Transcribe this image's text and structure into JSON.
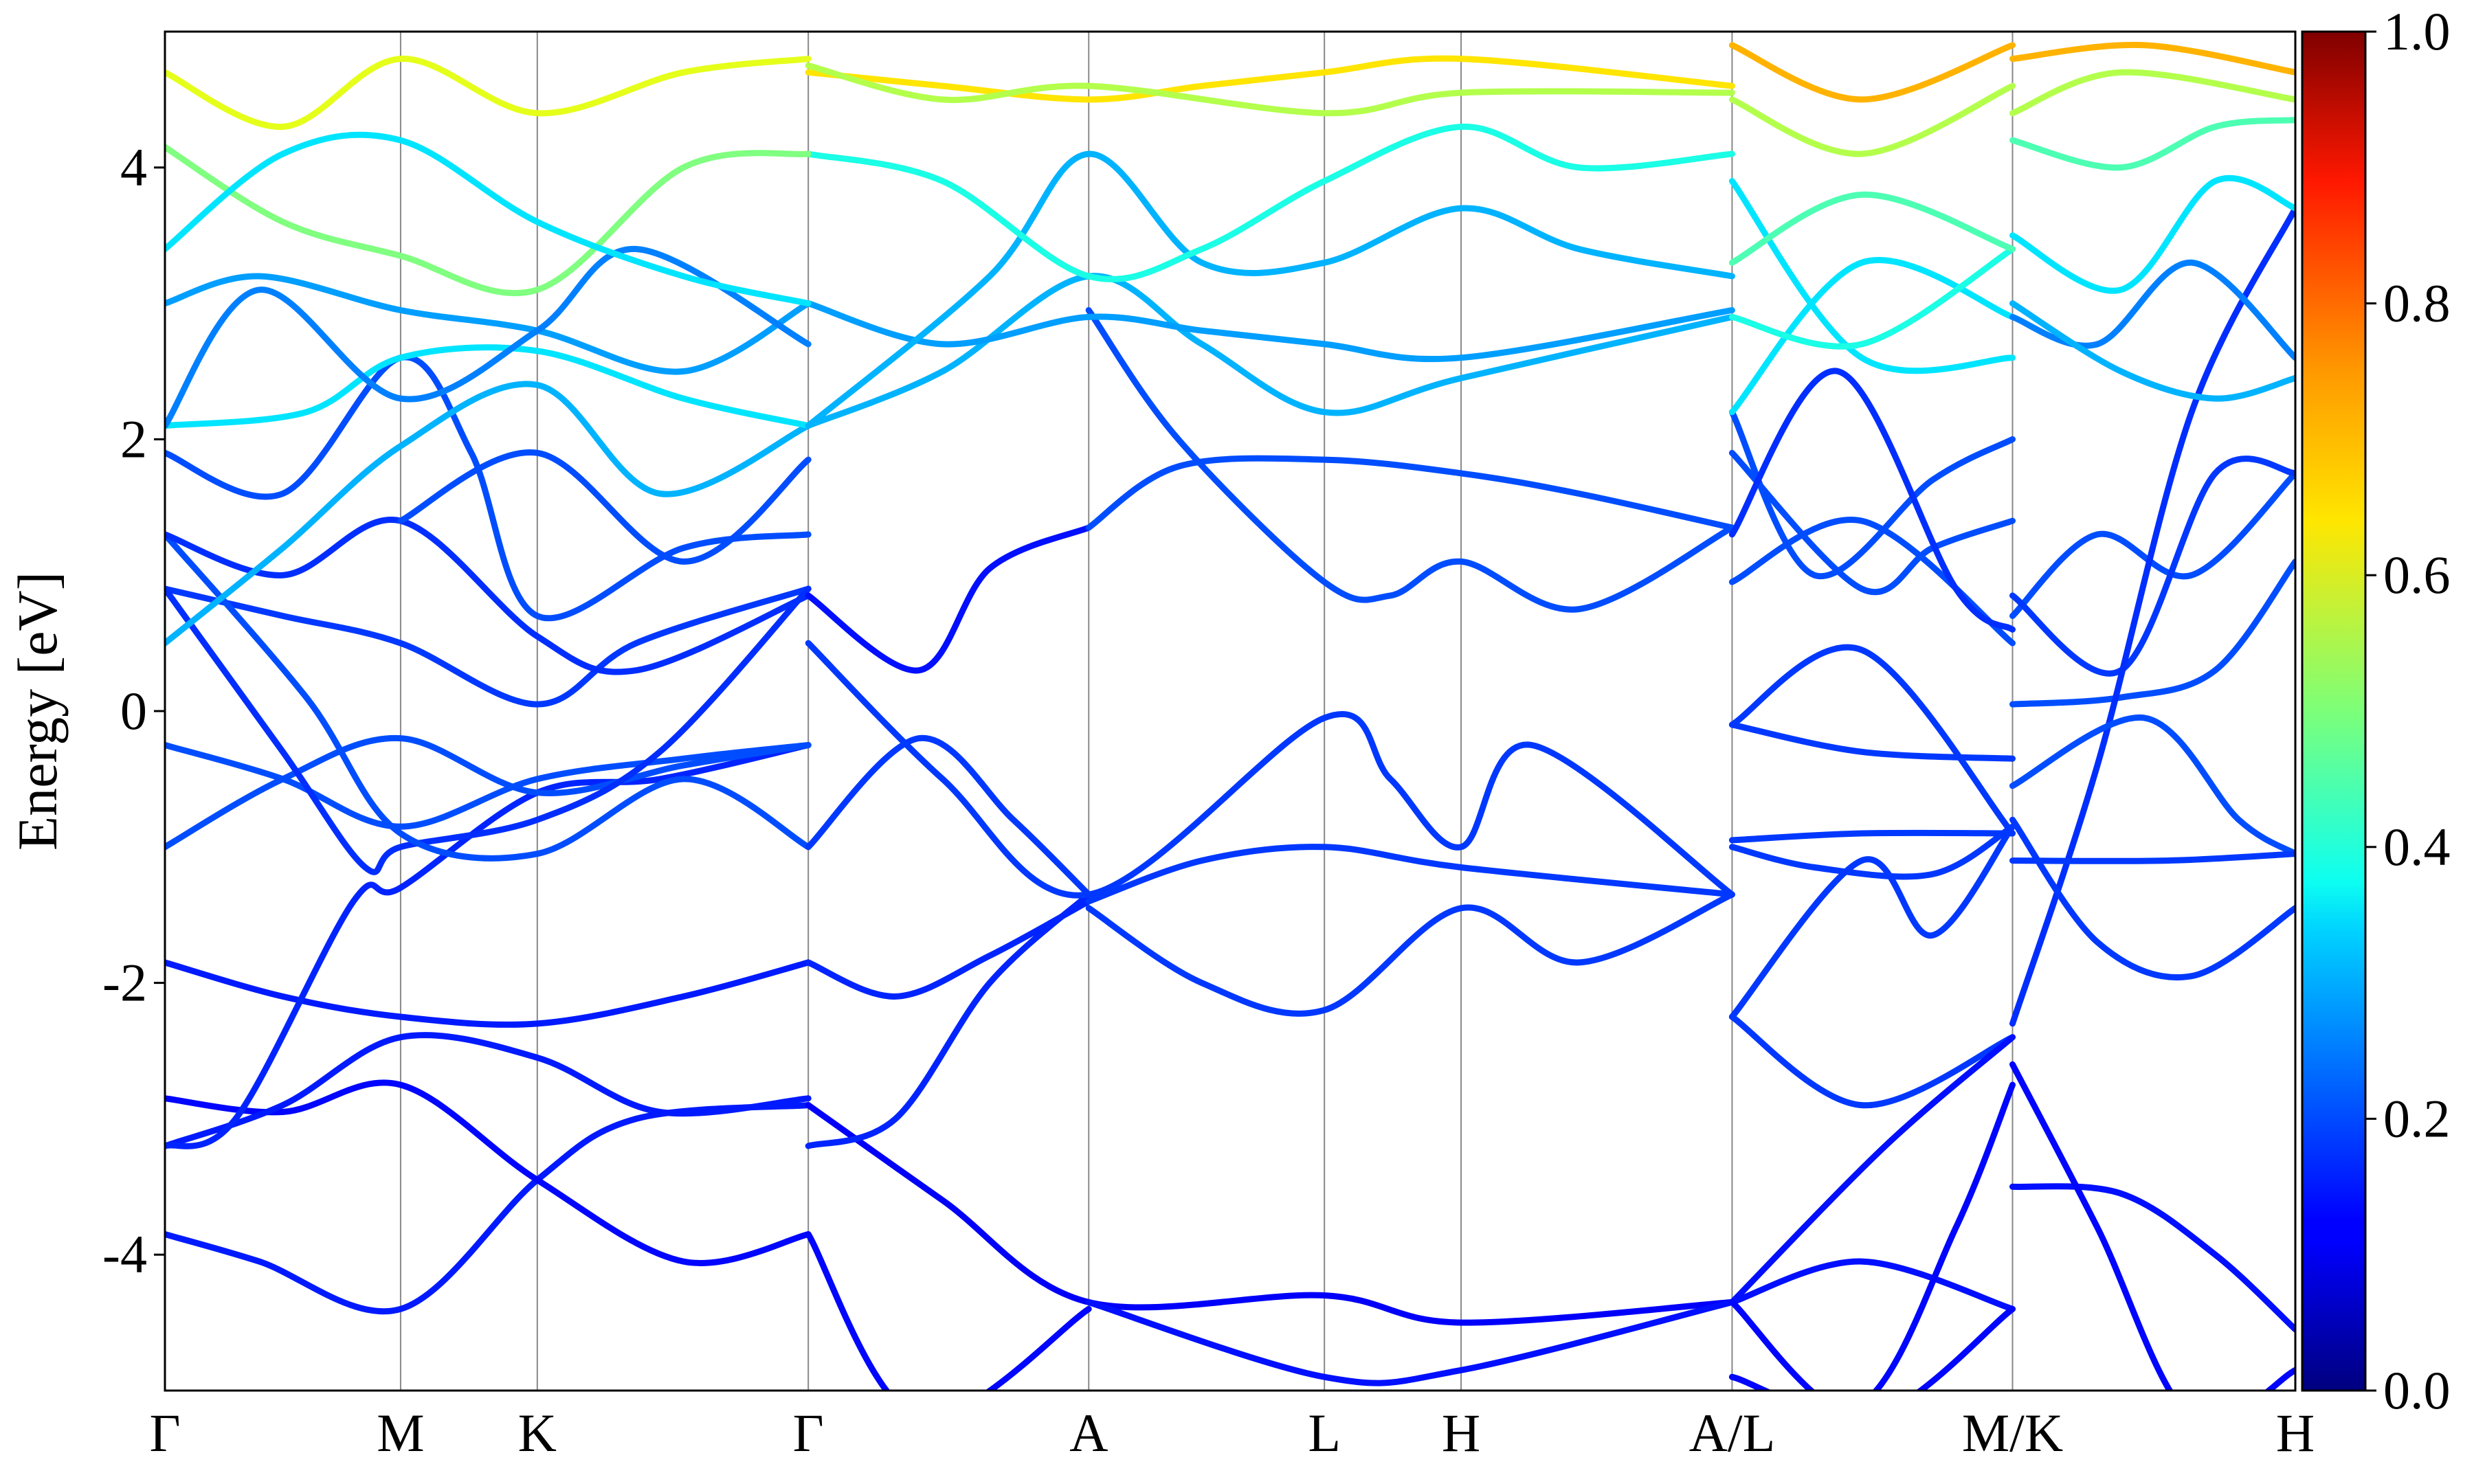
{
  "chart_data": {
    "type": "line",
    "title": "",
    "xlabel": "",
    "ylabel": "Energy [eV]",
    "ylim": [
      -5,
      5
    ],
    "y_ticks": [
      "-4",
      "-2",
      "0",
      "2",
      "4"
    ],
    "k_points": [
      {
        "label": "Γ",
        "k": 0.0
      },
      {
        "label": "M",
        "k": 1.0
      },
      {
        "label": "K",
        "k": 1.58
      },
      {
        "label": "Γ",
        "k": 2.73
      },
      {
        "label": "A",
        "k": 3.92
      },
      {
        "label": "L",
        "k": 4.92
      },
      {
        "label": "H",
        "k": 5.5
      },
      {
        "label": "A/L",
        "k": 6.65
      },
      {
        "label": "M/K",
        "k": 7.84
      },
      {
        "label": "H",
        "k": 9.04
      }
    ],
    "xlim": [
      0,
      9.04
    ],
    "colorbar": {
      "range": [
        0.0,
        1.0
      ],
      "ticks": [
        "0.0",
        "0.2",
        "0.4",
        "0.6",
        "0.8",
        "1.0"
      ],
      "colormap": "jet"
    },
    "series": [
      {
        "c": 0.15,
        "x": [
          0,
          0.4,
          1.0,
          1.58,
          2.0,
          2.73
        ],
        "y": [
          -3.85,
          -4.05,
          -4.4,
          -3.45,
          -3.0,
          -2.9
        ]
      },
      {
        "c": 0.12,
        "x": [
          2.73,
          3.3,
          3.92,
          4.92,
          5.5,
          6.65
        ],
        "y": [
          -2.9,
          -3.6,
          -4.35,
          -4.3,
          -4.5,
          -4.35
        ]
      },
      {
        "c": 0.13,
        "x": [
          0,
          0.5,
          1.0,
          1.58,
          2.2,
          2.73
        ],
        "y": [
          -2.85,
          -2.95,
          -2.75,
          -3.45,
          -4.05,
          -3.85
        ]
      },
      {
        "c": 0.13,
        "x": [
          2.73,
          3.2,
          3.92
        ],
        "y": [
          -3.85,
          -5.2,
          -4.4
        ]
      },
      {
        "c": 0.14,
        "x": [
          3.92,
          4.92,
          5.5,
          6.65
        ],
        "y": [
          -4.35,
          -4.9,
          -4.85,
          -4.35
        ]
      },
      {
        "c": 0.15,
        "x": [
          0,
          0.5,
          1.0,
          1.58,
          2.1,
          2.73
        ],
        "y": [
          -3.2,
          -2.9,
          -2.4,
          -2.55,
          -2.95,
          -2.85
        ]
      },
      {
        "c": 0.15,
        "x": [
          0,
          0.5,
          1.0,
          1.58,
          2.2,
          2.73
        ],
        "y": [
          -1.85,
          -2.1,
          -2.25,
          -2.3,
          -2.1,
          -1.85
        ]
      },
      {
        "c": 0.16,
        "x": [
          2.73,
          3.1,
          3.5,
          3.92
        ],
        "y": [
          -1.85,
          -2.1,
          -1.8,
          -1.4
        ]
      },
      {
        "c": 0.16,
        "x": [
          0,
          0.3,
          0.8,
          1.0,
          1.58,
          2.1,
          2.73
        ],
        "y": [
          -3.2,
          -3.0,
          -1.4,
          -1.3,
          -0.6,
          -0.5,
          -0.25
        ]
      },
      {
        "c": 0.16,
        "x": [
          2.73,
          3.1,
          3.5,
          3.92
        ],
        "y": [
          -3.2,
          -3.0,
          -2.0,
          -1.35
        ]
      },
      {
        "c": 0.2,
        "x": [
          0,
          0.5,
          1.0,
          1.58,
          2.2,
          2.73
        ],
        "y": [
          -0.25,
          -0.5,
          -0.85,
          -0.5,
          -0.35,
          -0.25
        ]
      },
      {
        "c": 0.2,
        "x": [
          0,
          0.5,
          1.0,
          1.58,
          2.2,
          2.73
        ],
        "y": [
          -1.0,
          -0.5,
          -0.2,
          -0.6,
          -0.4,
          -0.25
        ]
      },
      {
        "c": 0.18,
        "x": [
          0,
          0.5,
          1.0,
          1.58,
          2.0,
          2.73
        ],
        "y": [
          0.9,
          0.7,
          0.5,
          0.05,
          0.5,
          0.9
        ]
      },
      {
        "c": 0.17,
        "x": [
          0,
          0.5,
          0.85,
          1.0,
          1.58,
          2.1,
          2.73
        ],
        "y": [
          0.9,
          -0.3,
          -1.15,
          -1.0,
          -0.8,
          -0.3,
          0.9
        ]
      },
      {
        "c": 0.2,
        "x": [
          0,
          0.6,
          1.0,
          1.58,
          2.2,
          2.73
        ],
        "y": [
          1.3,
          0.1,
          -0.9,
          -1.05,
          -0.5,
          -1.0
        ]
      },
      {
        "c": 0.18,
        "x": [
          2.73,
          3.2,
          3.6,
          3.92
        ],
        "y": [
          -1.0,
          -0.2,
          -0.8,
          -1.35
        ]
      },
      {
        "c": 0.17,
        "x": [
          0,
          0.5,
          1.0,
          1.58,
          2.0,
          2.73
        ],
        "y": [
          1.3,
          1.0,
          1.4,
          0.55,
          0.3,
          0.85
        ]
      },
      {
        "c": 0.14,
        "x": [
          2.73,
          3.2,
          3.5,
          3.92
        ],
        "y": [
          0.85,
          0.3,
          1.05,
          1.35
        ]
      },
      {
        "c": 0.2,
        "x": [
          0,
          0.5,
          1.0,
          1.3,
          1.58,
          2.2,
          2.73
        ],
        "y": [
          1.9,
          1.6,
          2.6,
          1.9,
          0.7,
          1.2,
          1.3
        ]
      },
      {
        "c": 0.2,
        "x": [
          1.0,
          1.58,
          2.2,
          2.73
        ],
        "y": [
          1.4,
          1.9,
          1.1,
          1.85
        ]
      },
      {
        "c": 0.2,
        "x": [
          3.92,
          4.3,
          4.92,
          5.5,
          6.0,
          6.65
        ],
        "y": [
          1.35,
          1.8,
          1.85,
          1.75,
          1.6,
          1.35
        ]
      },
      {
        "c": 0.2,
        "x": [
          3.92,
          4.3,
          4.92,
          5.2,
          5.5,
          6.0,
          6.65
        ],
        "y": [
          2.95,
          2.0,
          0.95,
          0.85,
          1.1,
          0.75,
          1.35
        ]
      },
      {
        "c": 0.18,
        "x": [
          2.73,
          3.3,
          3.92,
          4.92,
          5.2,
          5.5,
          5.8,
          6.65
        ],
        "y": [
          0.5,
          -0.5,
          -1.35,
          -0.05,
          -0.5,
          -1.0,
          -0.25,
          -1.35
        ]
      },
      {
        "c": 0.18,
        "x": [
          3.92,
          4.4,
          4.92,
          5.5,
          6.65
        ],
        "y": [
          -1.4,
          -1.1,
          -1.0,
          -1.15,
          -1.35
        ]
      },
      {
        "c": 0.18,
        "x": [
          3.92,
          4.4,
          4.92,
          5.5,
          6.0,
          6.65
        ],
        "y": [
          -1.45,
          -2.0,
          -2.2,
          -1.45,
          -1.85,
          -1.35
        ]
      },
      {
        "c": 0.3,
        "x": [
          0,
          0.5,
          1.0,
          1.58,
          2.1,
          2.73
        ],
        "y": [
          0.5,
          1.2,
          1.95,
          2.4,
          1.6,
          2.1
        ]
      },
      {
        "c": 0.28,
        "x": [
          0,
          0.4,
          1.0,
          1.58,
          2.2,
          2.73
        ],
        "y": [
          3.0,
          3.2,
          2.95,
          2.8,
          2.5,
          3.0
        ]
      },
      {
        "c": 0.35,
        "x": [
          0,
          0.6,
          1.0,
          1.58,
          2.2,
          2.73
        ],
        "y": [
          2.1,
          2.2,
          2.6,
          2.65,
          2.3,
          2.1
        ]
      },
      {
        "c": 0.25,
        "x": [
          0,
          0.4,
          1.0,
          1.58,
          2.0,
          2.73
        ],
        "y": [
          2.1,
          3.1,
          2.3,
          2.8,
          3.4,
          2.7
        ]
      },
      {
        "c": 0.3,
        "x": [
          2.73,
          3.3,
          3.92,
          4.4,
          4.92,
          5.5,
          6.65
        ],
        "y": [
          2.1,
          2.5,
          3.2,
          2.7,
          2.2,
          2.45,
          2.9
        ]
      },
      {
        "c": 0.28,
        "x": [
          2.73,
          3.3,
          3.92,
          4.4,
          4.92,
          5.5,
          6.65
        ],
        "y": [
          3.0,
          2.7,
          2.9,
          2.8,
          2.7,
          2.6,
          2.95
        ]
      },
      {
        "c": 0.3,
        "x": [
          2.73,
          3.5,
          3.92,
          4.4,
          4.92,
          5.5,
          6.0,
          6.65
        ],
        "y": [
          2.1,
          3.2,
          4.1,
          3.3,
          3.3,
          3.7,
          3.4,
          3.2
        ]
      },
      {
        "c": 0.4,
        "x": [
          2.73,
          3.3,
          3.92,
          4.4,
          4.92,
          5.5,
          6.0,
          6.65
        ],
        "y": [
          4.1,
          3.9,
          3.2,
          3.4,
          3.9,
          4.3,
          4.0,
          4.1
        ]
      },
      {
        "c": 0.5,
        "x": [
          0,
          0.5,
          1.0,
          1.58,
          2.2,
          2.73
        ],
        "y": [
          4.15,
          3.6,
          3.35,
          3.1,
          4.0,
          4.1
        ]
      },
      {
        "c": 0.35,
        "x": [
          0,
          0.5,
          1.0,
          1.58,
          2.2,
          2.73
        ],
        "y": [
          3.4,
          4.1,
          4.2,
          3.6,
          3.2,
          3.0
        ]
      },
      {
        "c": 0.6,
        "x": [
          0,
          0.5,
          1.0,
          1.58,
          2.2,
          2.73
        ],
        "y": [
          4.7,
          4.3,
          4.8,
          4.4,
          4.7,
          4.8
        ]
      },
      {
        "c": 0.65,
        "x": [
          2.73,
          3.3,
          3.92,
          4.4,
          4.92,
          5.5,
          6.65
        ],
        "y": [
          4.7,
          4.6,
          4.5,
          4.6,
          4.7,
          4.8,
          4.6
        ]
      },
      {
        "c": 0.55,
        "x": [
          2.73,
          3.3,
          3.92,
          4.92,
          5.5,
          6.65
        ],
        "y": [
          4.75,
          4.5,
          4.6,
          4.4,
          4.55,
          4.55
        ]
      },
      {
        "c": 0.2,
        "x": [
          6.65,
          7.2,
          7.84
        ],
        "y": [
          0.95,
          1.4,
          0.5
        ]
      },
      {
        "c": 0.2,
        "x": [
          6.65,
          7.2,
          7.5,
          7.84
        ],
        "y": [
          1.9,
          0.9,
          1.2,
          1.4
        ]
      },
      {
        "c": 0.2,
        "x": [
          6.65,
          7.0,
          7.5,
          7.84
        ],
        "y": [
          2.2,
          1.0,
          1.7,
          2.0
        ]
      },
      {
        "c": 0.17,
        "x": [
          6.65,
          7.1,
          7.6,
          7.84
        ],
        "y": [
          1.3,
          2.5,
          0.9,
          0.6
        ]
      },
      {
        "c": 0.18,
        "x": [
          6.65,
          7.2,
          7.84
        ],
        "y": [
          -0.1,
          0.45,
          -0.9
        ]
      },
      {
        "c": 0.18,
        "x": [
          6.65,
          7.2,
          7.84
        ],
        "y": [
          -0.1,
          -0.3,
          -0.35
        ]
      },
      {
        "c": 0.18,
        "x": [
          6.65,
          7.2,
          7.84
        ],
        "y": [
          -0.95,
          -0.9,
          -0.9
        ]
      },
      {
        "c": 0.18,
        "x": [
          6.65,
          7.0,
          7.5,
          7.84
        ],
        "y": [
          -1.0,
          -1.15,
          -1.2,
          -0.85
        ]
      },
      {
        "c": 0.18,
        "x": [
          6.65,
          7.2,
          7.5,
          7.84
        ],
        "y": [
          -2.25,
          -1.1,
          -1.65,
          -0.85
        ]
      },
      {
        "c": 0.18,
        "x": [
          6.65,
          7.2,
          7.84
        ],
        "y": [
          -2.25,
          -2.9,
          -2.4
        ]
      },
      {
        "c": 0.14,
        "x": [
          6.65,
          7.3,
          7.84
        ],
        "y": [
          -4.35,
          -3.2,
          -2.4
        ]
      },
      {
        "c": 0.14,
        "x": [
          6.65,
          7.2,
          7.84
        ],
        "y": [
          -4.35,
          -4.05,
          -4.4
        ]
      },
      {
        "c": 0.13,
        "x": [
          6.65,
          7.2,
          7.6,
          7.84
        ],
        "y": [
          -4.9,
          -5.1,
          -3.8,
          -2.75
        ]
      },
      {
        "c": 0.13,
        "x": [
          6.65,
          7.2,
          7.84
        ],
        "y": [
          -4.35,
          -5.2,
          -4.4
        ]
      },
      {
        "c": 0.35,
        "x": [
          6.65,
          7.2,
          7.84
        ],
        "y": [
          2.2,
          3.3,
          2.9
        ]
      },
      {
        "c": 0.35,
        "x": [
          6.65,
          7.2,
          7.84
        ],
        "y": [
          3.9,
          2.6,
          2.6
        ]
      },
      {
        "c": 0.4,
        "x": [
          6.65,
          7.2,
          7.84
        ],
        "y": [
          2.9,
          2.7,
          3.4
        ]
      },
      {
        "c": 0.45,
        "x": [
          6.65,
          7.2,
          7.84
        ],
        "y": [
          3.3,
          3.8,
          3.4
        ]
      },
      {
        "c": 0.55,
        "x": [
          6.65,
          7.2,
          7.84
        ],
        "y": [
          4.5,
          4.1,
          4.6
        ]
      },
      {
        "c": 0.7,
        "x": [
          6.65,
          7.2,
          7.84
        ],
        "y": [
          4.9,
          4.5,
          4.9
        ]
      },
      {
        "c": 0.2,
        "x": [
          7.84,
          8.3,
          8.7,
          9.04
        ],
        "y": [
          0.05,
          0.1,
          0.3,
          1.1
        ]
      },
      {
        "c": 0.2,
        "x": [
          7.84,
          8.2,
          8.6,
          9.04
        ],
        "y": [
          0.7,
          1.3,
          1.0,
          1.75
        ]
      },
      {
        "c": 0.18,
        "x": [
          7.84,
          8.3,
          8.7,
          9.04
        ],
        "y": [
          0.85,
          0.3,
          1.75,
          1.75
        ]
      },
      {
        "c": 0.17,
        "x": [
          7.84,
          8.2,
          8.6,
          9.04
        ],
        "y": [
          -2.3,
          -0.4,
          2.2,
          3.7
        ]
      },
      {
        "c": 0.2,
        "x": [
          7.84,
          8.4,
          8.8,
          9.04
        ],
        "y": [
          -0.55,
          -0.05,
          -0.8,
          -1.05
        ]
      },
      {
        "c": 0.18,
        "x": [
          7.84,
          8.5,
          9.04
        ],
        "y": [
          -1.1,
          -1.1,
          -1.05
        ]
      },
      {
        "c": 0.18,
        "x": [
          7.84,
          8.2,
          8.6,
          9.04
        ],
        "y": [
          -0.8,
          -1.7,
          -1.95,
          -1.45
        ]
      },
      {
        "c": 0.14,
        "x": [
          7.84,
          8.3,
          8.7,
          9.04
        ],
        "y": [
          -3.5,
          -3.55,
          -4.0,
          -4.55
        ]
      },
      {
        "c": 0.13,
        "x": [
          7.84,
          8.2,
          8.6,
          9.04
        ],
        "y": [
          -2.6,
          -3.8,
          -5.2,
          -4.85
        ]
      },
      {
        "c": 0.25,
        "x": [
          7.84,
          8.2,
          8.6,
          9.04
        ],
        "y": [
          2.9,
          2.7,
          3.3,
          2.6
        ]
      },
      {
        "c": 0.3,
        "x": [
          7.84,
          8.3,
          8.7,
          9.04
        ],
        "y": [
          3.0,
          2.5,
          2.3,
          2.45
        ]
      },
      {
        "c": 0.35,
        "x": [
          7.84,
          8.3,
          8.7,
          9.04
        ],
        "y": [
          3.5,
          3.1,
          3.9,
          3.7
        ]
      },
      {
        "c": 0.45,
        "x": [
          7.84,
          8.3,
          8.7,
          9.04
        ],
        "y": [
          4.2,
          4.0,
          4.3,
          4.35
        ]
      },
      {
        "c": 0.55,
        "x": [
          7.84,
          8.3,
          9.04
        ],
        "y": [
          4.4,
          4.7,
          4.5
        ]
      },
      {
        "c": 0.7,
        "x": [
          7.84,
          8.4,
          9.04
        ],
        "y": [
          4.8,
          4.9,
          4.7
        ]
      }
    ]
  }
}
